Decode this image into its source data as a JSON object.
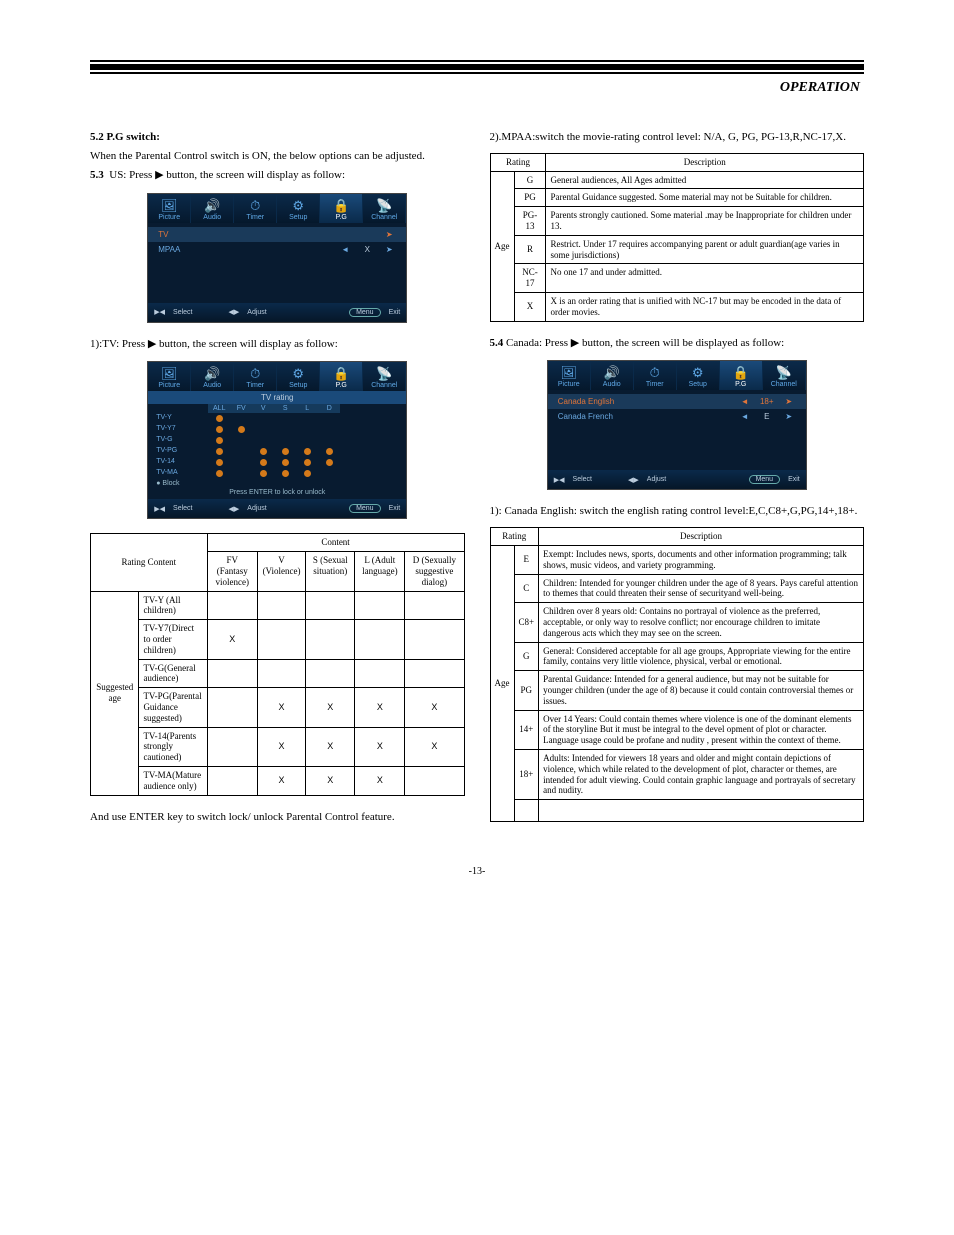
{
  "page_title": "OPERATION",
  "page_number": "-13-",
  "left": {
    "s52_head": "5.2  P.G  switch:",
    "s52_body": "When  the Parental Control switch is ON, the below options can  be adjusted.",
    "s53_head": "5.3",
    "s53_body": "US: Press  ▶  button, the screen will  display as follow:",
    "s53_tv_head": "1):TV: Press  ▶ button, the screen will  display as follow:",
    "enter_note": "And use ENTER key to switch lock/ unlock Parental Control feature.",
    "osd_tabs": [
      "Picture",
      "Audio",
      "Timer",
      "Setup",
      "P.G",
      "Channel"
    ],
    "osd1_rows": [
      {
        "label": "TV",
        "left": "",
        "val": "",
        "right": "➤",
        "sel": true
      },
      {
        "label": "MPAA",
        "left": "◄",
        "val": "X",
        "right": "➤",
        "sel": false
      }
    ],
    "osd_foot": {
      "select": "Select",
      "adjust": "Adjust",
      "menu": "Menu",
      "exit": "Exit"
    },
    "tv_rating_title": "TV rating",
    "tv_rating_cols": [
      "ALL",
      "FV",
      "V",
      "S",
      "L",
      "D"
    ],
    "tv_rating_rows": [
      {
        "lbl": "TV-Y",
        "dots": [
          1,
          0,
          0,
          0,
          0,
          0
        ]
      },
      {
        "lbl": "TV-Y7",
        "dots": [
          1,
          1,
          0,
          0,
          0,
          0
        ]
      },
      {
        "lbl": "TV-G",
        "dots": [
          1,
          0,
          0,
          0,
          0,
          0
        ]
      },
      {
        "lbl": "TV-PG",
        "dots": [
          1,
          0,
          1,
          1,
          1,
          1
        ]
      },
      {
        "lbl": "TV-14",
        "dots": [
          1,
          0,
          1,
          1,
          1,
          1
        ]
      },
      {
        "lbl": "TV-MA",
        "dots": [
          1,
          0,
          1,
          1,
          1,
          0
        ]
      }
    ],
    "tv_block": "● Block",
    "tv_enter_note": "Press ENTER to lock or unlock",
    "content_table": {
      "row_header": "Rating    Content",
      "side": "Suggested age",
      "cols": [
        "FV (Fantasy violence)",
        "V (Violence)",
        "S (Sexual situation)",
        "L (Adult language)",
        "D (Sexually suggestive dialog)"
      ],
      "group_header": "Content",
      "rows": [
        {
          "label": "TV-Y (All children)",
          "x": [
            0,
            0,
            0,
            0,
            0
          ]
        },
        {
          "label": "TV-Y7(Direct to order children)",
          "x": [
            1,
            0,
            0,
            0,
            0
          ]
        },
        {
          "label": "TV-G(General audience)",
          "x": [
            0,
            0,
            0,
            0,
            0
          ]
        },
        {
          "label": "TV-PG(Parental Guidance suggested)",
          "x": [
            0,
            1,
            1,
            1,
            1
          ]
        },
        {
          "label": "TV-14(Parents strongly cautioned)",
          "x": [
            0,
            1,
            1,
            1,
            1
          ]
        },
        {
          "label": "TV-MA(Mature audience only)",
          "x": [
            0,
            1,
            1,
            1,
            0
          ]
        }
      ]
    }
  },
  "right": {
    "mpaa_head": "2).MPAA:switch the movie-rating control level: N/A, G, PG, PG-13,R,NC-17,X.",
    "mpaa_table": {
      "h1": "Rating",
      "h2": "Description",
      "side": "Age",
      "rows": [
        {
          "r": "G",
          "d": "General audiences, All Ages admitted"
        },
        {
          "r": "PG",
          "d": "Parental Guidance suggested. Some material may not be Suitable for children."
        },
        {
          "r": "PG-13",
          "d": "Parents strongly cautioned. Some material .may be Inappropriate for children under 13."
        },
        {
          "r": "R",
          "d": "Restrict. Under 17 requires accompanying parent or adult guardian(age varies in some jurisdictions)"
        },
        {
          "r": "NC-17",
          "d": "No  one 17 and under admitted."
        },
        {
          "r": "X",
          "d": "X  is an order rating that is unified with NC-17 but may be encoded in the data of order movies."
        }
      ]
    },
    "s54_head": "5.4",
    "s54_body": "Canada: Press  ▶  button, the screen will be displayed as follow:",
    "osd3_rows": [
      {
        "label": "Canada  English",
        "left": "◄",
        "val": "18+",
        "right": "➤",
        "sel": true
      },
      {
        "label": "Canada  French",
        "left": "◄",
        "val": "E",
        "right": "➤",
        "sel": false
      }
    ],
    "ca_en_head": "1): Canada English: switch the english rating control level:E,C,C8+,G,PG,14+,18+.",
    "ca_table": {
      "h1": "Rating",
      "h2": "Description",
      "side": "Age",
      "rows": [
        {
          "r": "E",
          "d": "Exempt: Includes news, sports, documents and other information programming; talk shows, music videos, and variety programming."
        },
        {
          "r": "C",
          "d": "Children: Intended for younger children under the age of 8 years. Pays careful attention to themes that could threaten their sense of securityand well-being."
        },
        {
          "r": "C8+",
          "d": "Children over 8 years old: Contains no portrayal of violence as the preferred, acceptable, or only way to resolve conflict; nor encourage children to imitate dangerous acts which they may see on the screen."
        },
        {
          "r": "G",
          "d": "General: Considered acceptable for all age groups, Appropriate viewing for the entire family, contains very little violence, physical, verbal or emotional."
        },
        {
          "r": "PG",
          "d": "Parental Guidance: Intended for a general audience, but may not be suitable for younger children (under the age of 8) because it could contain controversial themes or issues."
        },
        {
          "r": "14+",
          "d": "Over 14 Years: Could contain themes where violence is one of the dominant elements of the storyline But it must be integral to the devel opment of plot or character. Language usage could be profane and nudity , present within the context of theme."
        },
        {
          "r": "18+",
          "d": "Adults: Intended for viewers 18 years and older and might contain depictions of  violence, which while related to the development of plot,  character or themes, are intended for adult  viewing. Could contain graphic language and portrayals of secretary and nudity."
        }
      ]
    }
  },
  "colors": {
    "osd_bg": "#081b30",
    "osd_accent": "#e0753a",
    "osd_text": "#6aa8e0",
    "dot": "#d47a1a"
  }
}
